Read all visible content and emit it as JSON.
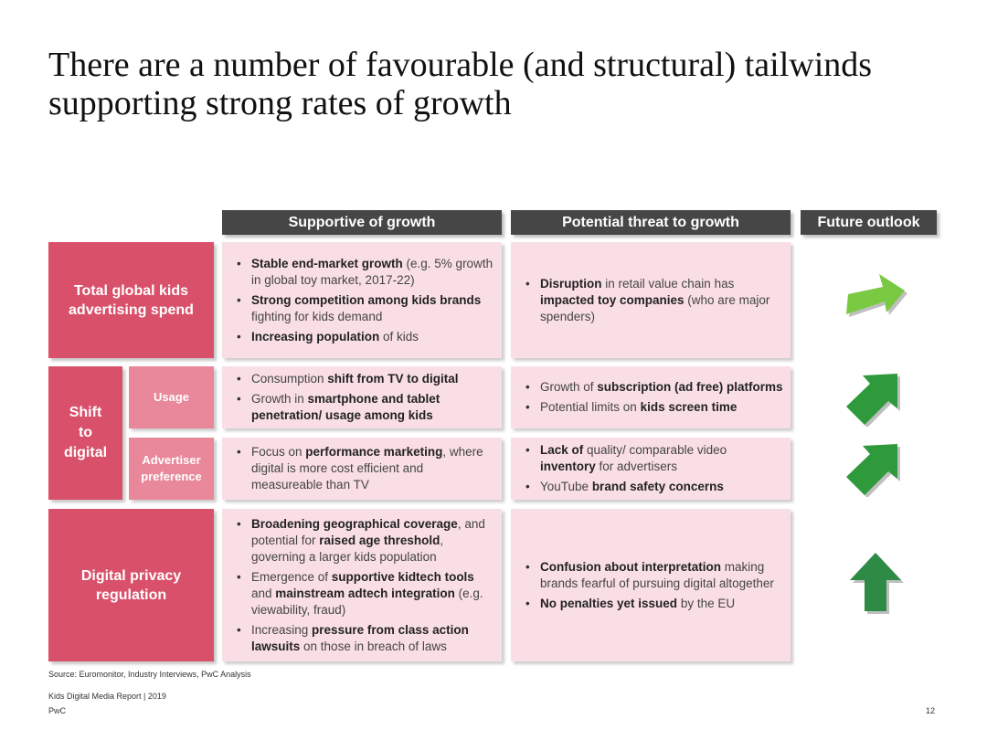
{
  "title": "There are a number of favourable (and structural) tailwinds supporting strong rates of growth",
  "headers": {
    "supportive": "Supportive of growth",
    "threat": "Potential threat to growth",
    "outlook": "Future outlook"
  },
  "rows": {
    "total": "Total global kids advertising spend",
    "shift": "Shift to digital",
    "usage": "Usage",
    "advertiser": "Advertiser preference",
    "privacy": "Digital privacy regulation"
  },
  "cells": {
    "total_support": [
      [
        "b:Stable end-market growth",
        " (e.g. 5% growth in global toy market, 2017-22)"
      ],
      [
        "b:Strong competition among kids brands",
        " fighting for kids demand"
      ],
      [
        "b:Increasing population",
        " of kids"
      ]
    ],
    "total_threat": [
      [
        "b:Disruption",
        " in retail value chain has ",
        "b:impacted toy companies",
        " (who are major spenders)"
      ]
    ],
    "usage_support": [
      [
        "Consumption ",
        "b:shift from TV to digital"
      ],
      [
        "Growth in ",
        "b:smartphone and tablet penetration/ usage among kids"
      ]
    ],
    "usage_threat": [
      [
        "Growth of ",
        "b:subscription (ad free) platforms"
      ],
      [
        "Potential limits on ",
        "b:kids screen time"
      ]
    ],
    "adv_support": [
      [
        "Focus on ",
        "b:performance marketing",
        ", where digital is more cost efficient and measureable than TV"
      ]
    ],
    "adv_threat": [
      [
        "b:Lack of",
        " quality/ comparable video ",
        "b:inventory",
        " for advertisers"
      ],
      [
        "YouTube ",
        "b:brand safety concerns"
      ]
    ],
    "privacy_support": [
      [
        "b:Broadening geographical coverage",
        ", and potential for ",
        "b:raised age threshold",
        ", governing a larger kids population"
      ],
      [
        "Emergence of ",
        "b:supportive kidtech tools",
        " and ",
        "b:mainstream adtech integration",
        " (e.g. viewability, fraud)"
      ],
      [
        "Increasing ",
        "b:pressure from class action lawsuits",
        " on those in breach of laws"
      ]
    ],
    "privacy_threat": [
      [
        "b:Confusion about interpretation",
        " making brands fearful of pursuing digital altogether"
      ],
      [
        "b:No penalties yet issued",
        " by the EU"
      ]
    ]
  },
  "arrows": {
    "total": {
      "icon": "arrow-right-up-icon",
      "color": "#7ac943"
    },
    "usage": {
      "icon": "arrow-up-right-icon",
      "color": "#2e9a3c"
    },
    "advertiser": {
      "icon": "arrow-up-right-icon",
      "color": "#2e9a3c"
    },
    "privacy": {
      "icon": "arrow-up-icon",
      "color": "#2e8b45"
    }
  },
  "footer": {
    "source": "Source: Euromonitor, Industry Interviews, PwC Analysis",
    "report": "Kids Digital Media Report | 2019",
    "brand": "PwC",
    "page": "12"
  }
}
